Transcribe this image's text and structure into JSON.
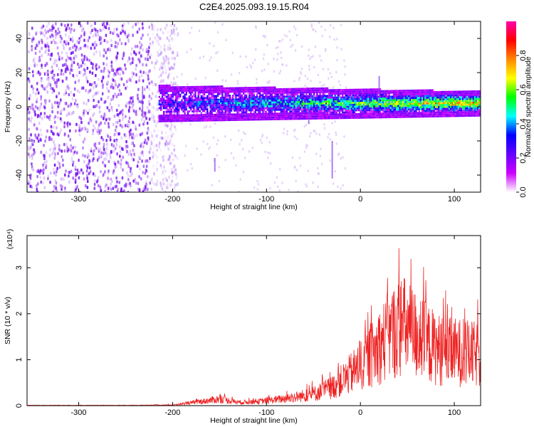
{
  "title": "C2E4.2025.093.19.15.R04",
  "chart_data": [
    {
      "type": "heatmap",
      "name": "spectrogram",
      "xlabel": "Height of straight line (km)",
      "ylabel": "Frequency (Hz)",
      "xlim": [
        -355,
        128
      ],
      "ylim": [
        -50,
        50
      ],
      "xticks": [
        -300,
        -200,
        -100,
        0,
        100
      ],
      "yticks": [
        -40,
        -20,
        0,
        20,
        40
      ],
      "colorbar": {
        "label": "Normalized spectral amplitude",
        "range": [
          0.0,
          1.0
        ],
        "ticks": [
          0.0,
          0.2,
          0.4,
          0.6,
          0.8
        ],
        "tick_labels": [
          "0.0",
          "0.2",
          "0.4",
          "0.6",
          "0.8"
        ],
        "colors": [
          "#ffffff",
          "#cc00ff",
          "#6600ff",
          "#0000ff",
          "#00ffff",
          "#00ff00",
          "#ffff00",
          "#ff8800",
          "#ff0000",
          "#ff00aa"
        ]
      },
      "band": {
        "center_hz": 2,
        "half_width_hz": 6,
        "x_start_km": -215,
        "x_end_km": 128
      },
      "noise_region": {
        "x_start_km": -355,
        "x_end_km": -215
      }
    },
    {
      "type": "line",
      "name": "snr",
      "xlabel": "Height of straight line (km)",
      "ylabel": "SNR (10 * v/v)",
      "y_multiplier": "(x10⁴)",
      "xlim": [
        -355,
        128
      ],
      "ylim": [
        0,
        3.7
      ],
      "xticks": [
        -300,
        -200,
        -100,
        0,
        100
      ],
      "yticks": [
        0,
        1,
        2,
        3
      ],
      "color": "#ee2222",
      "envelope": {
        "x": [
          -355,
          -250,
          -200,
          -170,
          -150,
          -130,
          -110,
          -90,
          -70,
          -50,
          -30,
          -15,
          0,
          15,
          30,
          45,
          60,
          75,
          90,
          105,
          128
        ],
        "y": [
          0.01,
          0.01,
          0.02,
          0.12,
          0.2,
          0.1,
          0.12,
          0.18,
          0.25,
          0.35,
          0.55,
          0.85,
          1.2,
          1.6,
          2.1,
          2.4,
          2.1,
          1.8,
          1.6,
          1.6,
          1.5
        ]
      }
    }
  ]
}
